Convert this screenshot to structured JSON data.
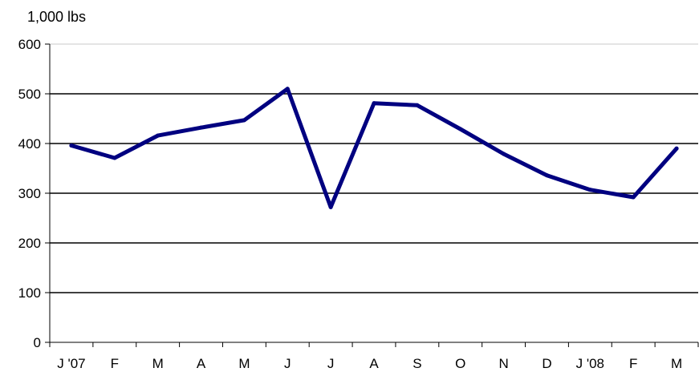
{
  "chart_data": {
    "type": "line",
    "ylabel": "1,000 lbs",
    "xlabel": "",
    "title": "",
    "ylim": [
      0,
      600
    ],
    "yticks": [
      0,
      100,
      200,
      300,
      400,
      500,
      600
    ],
    "ytick_labels": [
      "0",
      "100",
      "200",
      "300",
      "400",
      "500",
      "600"
    ],
    "categories": [
      "J '07",
      "F",
      "M",
      "A",
      "M",
      "J",
      "J",
      "A",
      "S",
      "O",
      "N",
      "D",
      "J '08",
      "F",
      "M"
    ],
    "series": [
      {
        "values": [
          396,
          371,
          416,
          432,
          447,
          510,
          272,
          481,
          477,
          429,
          379,
          336,
          307,
          292,
          390
        ],
        "color": "#000080"
      }
    ],
    "grid": "horizontal",
    "legend": "none"
  }
}
